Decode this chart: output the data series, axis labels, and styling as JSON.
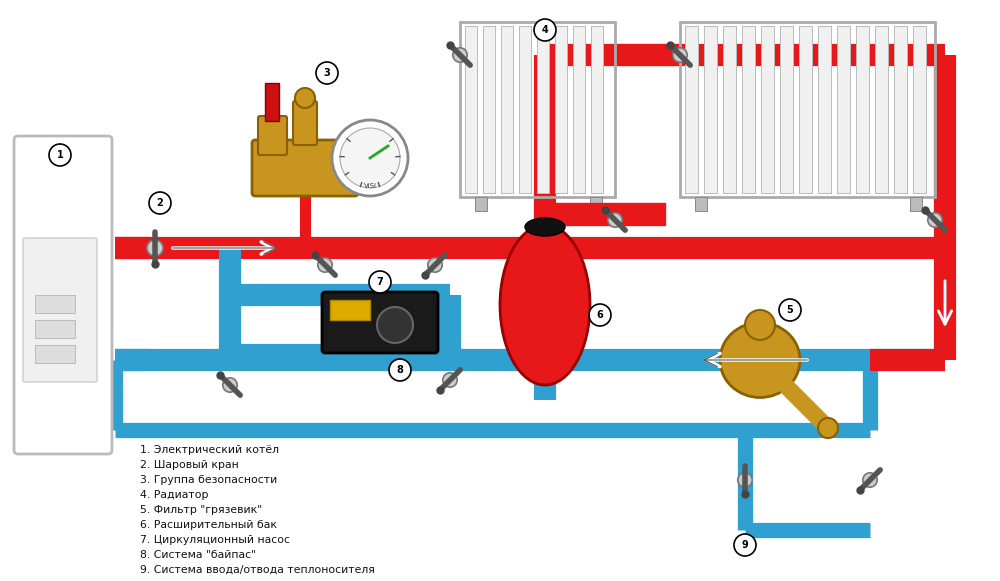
{
  "bg_color": "#ffffff",
  "pipe_red": "#e8181a",
  "pipe_blue": "#2fa0d0",
  "lw_main": 16,
  "lw_thin": 11,
  "legend_items": [
    "1. Электрический котёл",
    "2. Шаровый кран",
    "3. Группа безопасности",
    "4. Радиатор",
    "5. Фильтр \"грязевик\"",
    "6. Расширительный бак",
    "7. Циркуляционный насос",
    "8. Система \"байпас\"",
    "9. Система ввода/отвода теплоносителя"
  ],
  "figsize": [
    10.0,
    5.81
  ],
  "dpi": 100
}
